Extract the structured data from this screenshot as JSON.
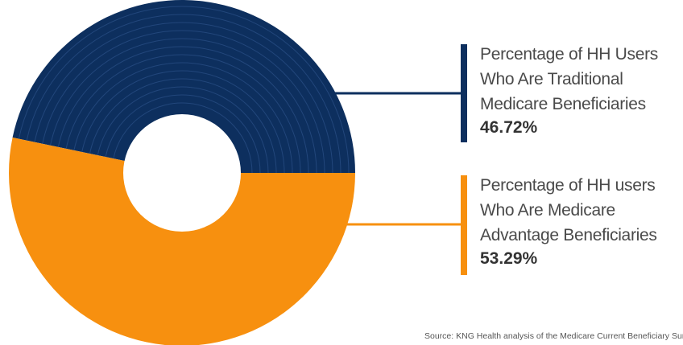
{
  "chart_data": {
    "type": "pie",
    "variant": "donut",
    "series": [
      {
        "name": "Percentage of HH Users Who Are Traditional Medicare Beneficiaries",
        "label_lines": [
          "Percentage of HH Users",
          "Who Are Traditional",
          "Medicare Beneficiaries"
        ],
        "value": 46.72,
        "value_label": "46.72%",
        "color": "#0d2f5e"
      },
      {
        "name": "Percentage of HH users Who Are Medicare Advantage Beneficiaries",
        "label_lines": [
          "Percentage of HH users",
          "Who Are Medicare",
          "Advantage Beneficiaries"
        ],
        "value": 53.29,
        "value_label": "53.29%",
        "color": "#f7900f"
      }
    ],
    "legend_placement": "right",
    "source": "Source: KNG Health analysis of the Medicare Current Beneficiary Survey"
  }
}
